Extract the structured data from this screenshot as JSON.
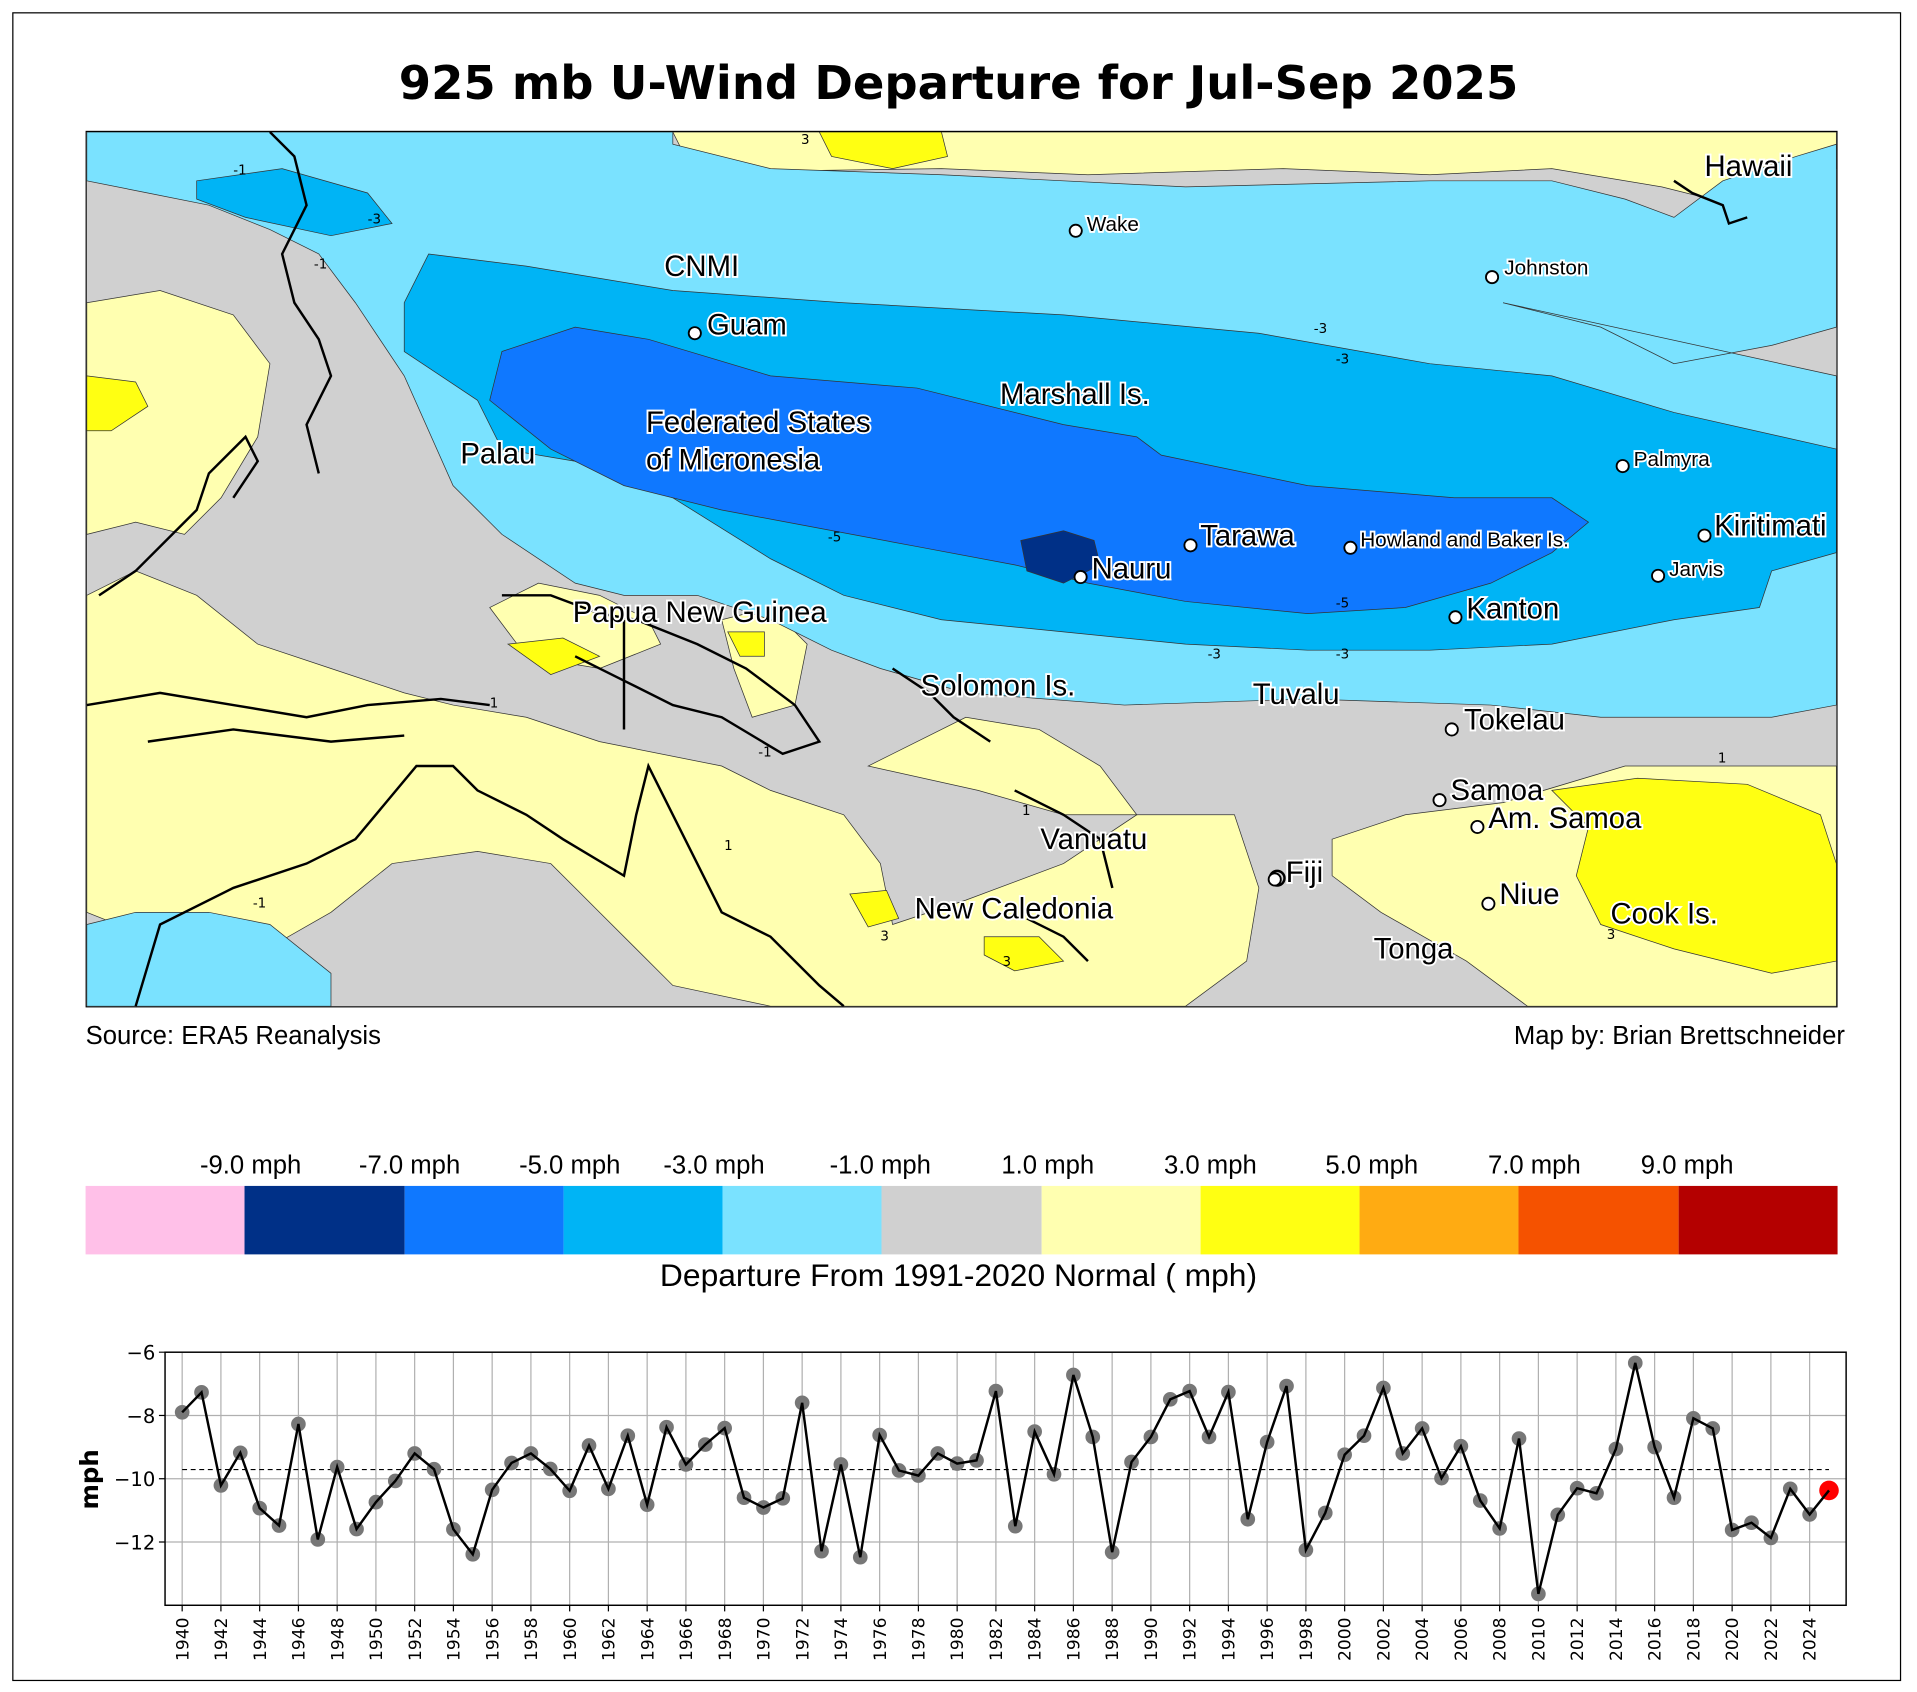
{
  "title": "925 mb U-Wind Departure for Jul-Sep 2025",
  "source": "Source: ERA5 Reanalysis",
  "credit": "Map by: Brian Brettschneider",
  "map_labels": {
    "hawaii": "Hawaii",
    "wake": "Wake",
    "cnmi": "CNMI",
    "johnston": "Johnston",
    "guam": "Guam",
    "marshall": "Marshall Is.",
    "fsm1": "Federated States",
    "fsm2": "of Micronesia",
    "palau": "Palau",
    "palmyra": "Palmyra",
    "tarawa": "Tarawa",
    "howland": "Howland and Baker Is.",
    "kiritimati": "Kiritimati",
    "jarvis": "Jarvis",
    "nauru": "Nauru",
    "kanton": "Kanton",
    "png": "Papua New Guinea",
    "solomon": "Solomon Is.",
    "tuvalu": "Tuvalu",
    "tokelau": "Tokelau",
    "samoa": "Samoa",
    "amsamoa": "Am. Samoa",
    "vanuatu": "Vanuatu",
    "fiji": "Fiji",
    "niue": "Niue",
    "cook": "Cook Is.",
    "newcal": "New Caledonia",
    "tonga": "Tonga"
  },
  "contour_labels": [
    "-3",
    "-1",
    "-1",
    "-3",
    "-3",
    "-5",
    "-5",
    "-3",
    "-3",
    "3",
    "1",
    "1",
    "-1",
    "3",
    "3",
    "1",
    "-1",
    "3",
    "1"
  ],
  "colorbar": {
    "ticks": [
      "-9.0 mph",
      "-7.0 mph",
      "-5.0 mph",
      "-3.0 mph",
      "-1.0 mph",
      "1.0 mph",
      "3.0 mph",
      "5.0 mph",
      "7.0 mph",
      "9.0 mph"
    ],
    "colors": [
      "#ffc0e8",
      "#003087",
      "#0f78ff",
      "#00b4f5",
      "#7ae2ff",
      "#d0d0d0",
      "#ffffb0",
      "#ffff12",
      "#ffab12",
      "#f55200",
      "#b40000"
    ],
    "title": "Departure From 1991-2020 Normal ( mph)"
  },
  "chart_data": {
    "type": "line",
    "ylabel": "mph",
    "xlabel": "",
    "ylim": [
      -14,
      -6
    ],
    "yticks": [
      "−6",
      "−8",
      "−10",
      "−12"
    ],
    "ytick_values": [
      -6,
      -8,
      -10,
      -12
    ],
    "grid": true,
    "mean_line": -9.71,
    "highlight_year": 2025,
    "highlight_color": "#ff0000",
    "x": [
      1940,
      1941,
      1942,
      1943,
      1944,
      1945,
      1946,
      1947,
      1948,
      1949,
      1950,
      1951,
      1952,
      1953,
      1954,
      1955,
      1956,
      1957,
      1958,
      1959,
      1960,
      1961,
      1962,
      1963,
      1964,
      1965,
      1966,
      1967,
      1968,
      1969,
      1970,
      1971,
      1972,
      1973,
      1974,
      1975,
      1976,
      1977,
      1978,
      1979,
      1980,
      1981,
      1982,
      1983,
      1984,
      1985,
      1986,
      1987,
      1988,
      1989,
      1990,
      1991,
      1992,
      1993,
      1994,
      1995,
      1996,
      1997,
      1998,
      1999,
      2000,
      2001,
      2002,
      2003,
      2004,
      2005,
      2006,
      2007,
      2008,
      2009,
      2010,
      2011,
      2012,
      2013,
      2014,
      2015,
      2016,
      2017,
      2018,
      2019,
      2020,
      2021,
      2022,
      2023,
      2024,
      2025
    ],
    "values": [
      -7.9,
      -7.27,
      -10.21,
      -9.18,
      -10.93,
      -11.48,
      -8.27,
      -11.92,
      -9.63,
      -11.59,
      -10.74,
      -10.07,
      -9.2,
      -9.7,
      -11.6,
      -12.39,
      -10.35,
      -9.5,
      -9.2,
      -9.69,
      -10.38,
      -8.95,
      -10.32,
      -8.64,
      -10.82,
      -8.37,
      -9.55,
      -8.92,
      -8.4,
      -10.6,
      -10.91,
      -10.62,
      -7.6,
      -12.29,
      -9.55,
      -12.48,
      -8.62,
      -9.74,
      -9.9,
      -9.2,
      -9.52,
      -9.42,
      -7.23,
      -11.5,
      -8.51,
      -9.86,
      -6.72,
      -8.68,
      -12.32,
      -9.47,
      -8.68,
      -7.49,
      -7.23,
      -8.68,
      -7.26,
      -11.28,
      -8.84,
      -7.07,
      -12.25,
      -11.08,
      -9.24,
      -8.64,
      -7.13,
      -9.2,
      -8.41,
      -9.98,
      -8.97,
      -10.69,
      -11.57,
      -8.73,
      -13.64,
      -11.14,
      -10.3,
      -10.46,
      -9.06,
      -6.34,
      -9.0,
      -10.6,
      -8.09,
      -8.41,
      -11.62,
      -11.39,
      -11.87,
      -10.32,
      -11.13,
      -10.37
    ],
    "xticks": [
      "1940",
      "1942",
      "1944",
      "1946",
      "1948",
      "1950",
      "1952",
      "1954",
      "1956",
      "1958",
      "1960",
      "1962",
      "1964",
      "1966",
      "1968",
      "1970",
      "1972",
      "1974",
      "1976",
      "1978",
      "1980",
      "1982",
      "1984",
      "1986",
      "1988",
      "1990",
      "1992",
      "1994",
      "1996",
      "1998",
      "2000",
      "2002",
      "2004",
      "2006",
      "2008",
      "2010",
      "2012",
      "2014",
      "2016",
      "2018",
      "2020",
      "2022",
      "2024"
    ]
  }
}
